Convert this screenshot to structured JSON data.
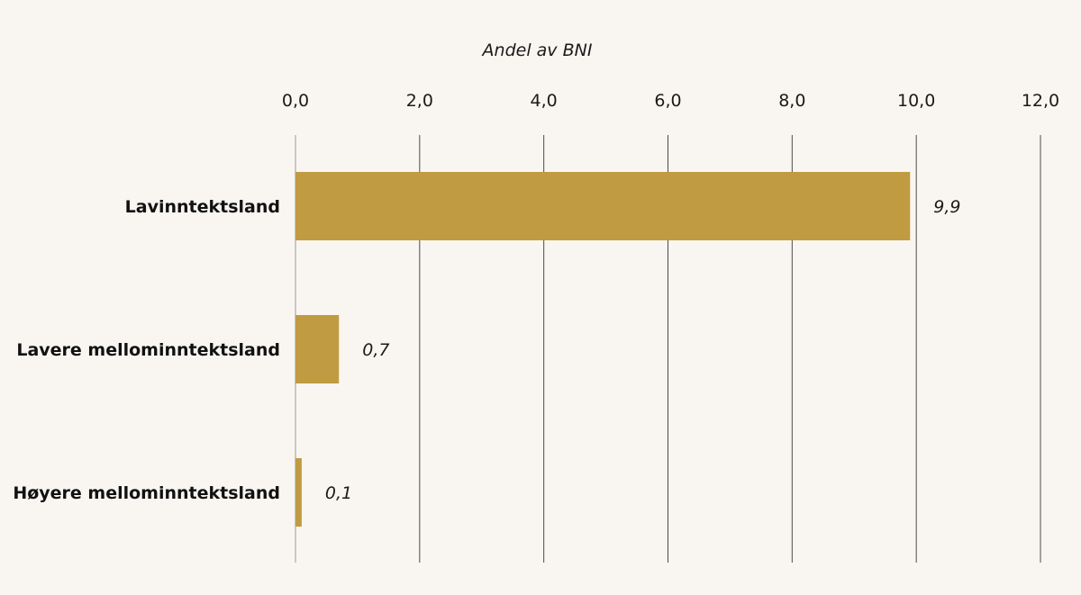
{
  "chart_data": {
    "type": "bar",
    "orientation": "horizontal",
    "title": "",
    "xlabel": "Andel av BNI",
    "ylabel": "",
    "xlim": [
      0,
      12
    ],
    "tick_values": [
      0,
      2,
      4,
      6,
      8,
      10,
      12
    ],
    "tick_labels": [
      "0,0",
      "2,0",
      "4,0",
      "6,0",
      "8,0",
      "10,0",
      "12,0"
    ],
    "categories": [
      "Lavinntektsland",
      "Lavere mellominntektsland",
      "Høyere mellominntektsland"
    ],
    "values": [
      9.9,
      0.7,
      0.1
    ],
    "value_labels": [
      "9,9",
      "0,7",
      "0,1"
    ],
    "bar_color": "#c19b42",
    "grid": true,
    "x_axis_position": "top"
  }
}
